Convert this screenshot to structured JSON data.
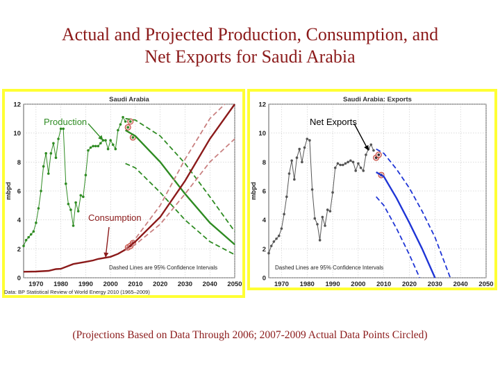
{
  "slide": {
    "title_line1": "Actual and Projected Production, Consumption, and",
    "title_line2": "Net Exports for Saudi Arabia",
    "footer": "(Projections Based on Data Through 2006; 2007-2009 Actual Data Points Circled)"
  },
  "chart_data": [
    {
      "type": "line",
      "title": "Saudi Arabia",
      "ylabel": "mbpd",
      "xlabel": "",
      "source": "Data: BP Statistical Review of World Energy 2010 (1965–2009)",
      "note": "Dashed Lines are 95% Confidence Intervals",
      "xlim": [
        1965,
        2050
      ],
      "ylim": [
        0,
        12
      ],
      "xticks": [
        1970,
        1980,
        1990,
        2000,
        2010,
        2020,
        2030,
        2040,
        2050
      ],
      "yticks": [
        0,
        2,
        4,
        6,
        8,
        10,
        12
      ],
      "grid": true,
      "colors": {
        "production": "#2e8b22",
        "consumption": "#8b1a1a",
        "consumption_ci": "#c98080"
      },
      "annotations": [
        {
          "text": "Production",
          "color": "#2e8b22",
          "points_to": [
            1997,
            9.5
          ]
        },
        {
          "text": "Consumption",
          "color": "#8b1a1a",
          "points_to": [
            1998,
            1.4
          ]
        }
      ],
      "series": [
        {
          "name": "Production",
          "style": "line+markers",
          "x": [
            1965,
            1966,
            1967,
            1968,
            1969,
            1970,
            1971,
            1972,
            1973,
            1974,
            1975,
            1976,
            1977,
            1978,
            1979,
            1980,
            1981,
            1982,
            1983,
            1984,
            1985,
            1986,
            1987,
            1988,
            1989,
            1990,
            1991,
            1992,
            1993,
            1994,
            1995,
            1996,
            1997,
            1998,
            1999,
            2000,
            2001,
            2002,
            2003,
            2004,
            2005,
            2006
          ],
          "y": [
            2.2,
            2.6,
            2.8,
            3.0,
            3.2,
            3.8,
            4.8,
            6.0,
            7.7,
            8.6,
            7.2,
            8.6,
            9.3,
            8.3,
            9.6,
            10.3,
            10.3,
            6.5,
            5.1,
            4.7,
            3.6,
            5.2,
            4.6,
            5.7,
            5.6,
            7.1,
            8.8,
            9.0,
            9.1,
            9.1,
            9.1,
            9.3,
            9.5,
            9.5,
            8.9,
            9.5,
            9.2,
            8.9,
            10.2,
            10.6,
            11.1,
            10.8
          ]
        },
        {
          "name": "Production actual 2007-2009",
          "style": "circled-markers",
          "x": [
            2007,
            2008,
            2009
          ],
          "y": [
            10.4,
            10.8,
            9.7
          ]
        },
        {
          "name": "Production projection",
          "style": "line",
          "x": [
            2006,
            2010,
            2020,
            2030,
            2040,
            2050
          ],
          "y": [
            10.2,
            9.8,
            8.0,
            5.8,
            3.8,
            2.3
          ]
        },
        {
          "name": "Production upper 95%",
          "style": "dashed",
          "x": [
            2006,
            2010,
            2020,
            2030,
            2040,
            2050
          ],
          "y": [
            11.0,
            10.9,
            9.8,
            7.9,
            5.6,
            3.2
          ]
        },
        {
          "name": "Production lower 95%",
          "style": "dashed",
          "x": [
            2006,
            2010,
            2020,
            2030,
            2040,
            2050
          ],
          "y": [
            7.9,
            7.6,
            5.9,
            4.0,
            2.5,
            1.6
          ]
        },
        {
          "name": "Consumption",
          "style": "line",
          "x": [
            1965,
            1970,
            1975,
            1978,
            1980,
            1985,
            1990,
            1993,
            1995,
            2000,
            2003,
            2006
          ],
          "y": [
            0.42,
            0.43,
            0.48,
            0.6,
            0.62,
            0.95,
            1.1,
            1.2,
            1.3,
            1.45,
            1.65,
            1.95
          ]
        },
        {
          "name": "Consumption actual 2007-2009",
          "style": "circled-markers",
          "x": [
            2007,
            2008,
            2009
          ],
          "y": [
            2.1,
            2.2,
            2.4
          ]
        },
        {
          "name": "Consumption projection",
          "style": "line",
          "x": [
            2006,
            2010,
            2020,
            2030,
            2040,
            2050
          ],
          "y": [
            1.95,
            2.5,
            4.2,
            6.7,
            9.6,
            12.0
          ]
        },
        {
          "name": "Consumption upper 95%",
          "style": "dashed",
          "x": [
            2006,
            2010,
            2020,
            2030,
            2040,
            2046
          ],
          "y": [
            2.0,
            2.7,
            5.0,
            8.2,
            11.0,
            12.0
          ]
        },
        {
          "name": "Consumption lower 95%",
          "style": "dashed",
          "x": [
            2006,
            2010,
            2020,
            2030,
            2040,
            2050
          ],
          "y": [
            1.9,
            2.3,
            3.7,
            5.8,
            8.0,
            9.6
          ]
        }
      ]
    },
    {
      "type": "line",
      "title": "Saudi Arabia: Exports",
      "ylabel": "mbpd",
      "xlabel": "",
      "note": "Dashed Lines are 95% Confidence Intervals",
      "xlim": [
        1965,
        2050
      ],
      "ylim": [
        0,
        12
      ],
      "xticks": [
        1970,
        1980,
        1990,
        2000,
        2010,
        2020,
        2030,
        2040,
        2050
      ],
      "yticks": [
        0,
        2,
        4,
        6,
        8,
        10,
        12
      ],
      "grid": true,
      "colors": {
        "exports": "#555555",
        "projection": "#1f35d6"
      },
      "annotations": [
        {
          "text": "Net Exports",
          "color": "#000000",
          "points_to": [
            2004,
            8.8
          ]
        }
      ],
      "series": [
        {
          "name": "Net Exports",
          "style": "line+markers",
          "x": [
            1965,
            1966,
            1967,
            1968,
            1969,
            1970,
            1971,
            1972,
            1973,
            1974,
            1975,
            1976,
            1977,
            1978,
            1979,
            1980,
            1981,
            1982,
            1983,
            1984,
            1985,
            1986,
            1987,
            1988,
            1989,
            1990,
            1991,
            1992,
            1993,
            1994,
            1995,
            1996,
            1997,
            1998,
            1999,
            2000,
            2001,
            2002,
            2003,
            2004,
            2005,
            2006
          ],
          "y": [
            1.7,
            2.2,
            2.5,
            2.7,
            2.9,
            3.4,
            4.4,
            5.6,
            7.2,
            8.1,
            6.8,
            8.3,
            8.9,
            8.0,
            9.0,
            9.6,
            9.5,
            6.1,
            4.1,
            3.7,
            2.6,
            4.2,
            3.6,
            4.7,
            4.6,
            5.9,
            7.6,
            7.9,
            7.8,
            7.8,
            7.9,
            8.0,
            8.1,
            8.0,
            7.4,
            7.9,
            7.6,
            7.4,
            8.5,
            8.9,
            9.2,
            8.8
          ]
        },
        {
          "name": "Net Exports actual 2007-2009",
          "style": "circled-markers",
          "x": [
            2007,
            2008,
            2009
          ],
          "y": [
            8.3,
            8.5,
            7.1
          ]
        },
        {
          "name": "Net Exports projection",
          "style": "line",
          "x": [
            2007,
            2010,
            2015,
            2020,
            2025,
            2030
          ],
          "y": [
            7.3,
            7.0,
            5.5,
            3.8,
            2.0,
            0
          ]
        },
        {
          "name": "Net Exports upper 95%",
          "style": "dashed",
          "x": [
            2007,
            2010,
            2015,
            2020,
            2025,
            2030,
            2036
          ],
          "y": [
            8.9,
            8.6,
            7.5,
            6.2,
            4.6,
            2.8,
            0
          ]
        },
        {
          "name": "Net Exports lower 95%",
          "style": "dashed",
          "x": [
            2007,
            2010,
            2015,
            2020,
            2024
          ],
          "y": [
            5.6,
            5.0,
            3.4,
            1.6,
            0
          ]
        }
      ]
    }
  ]
}
